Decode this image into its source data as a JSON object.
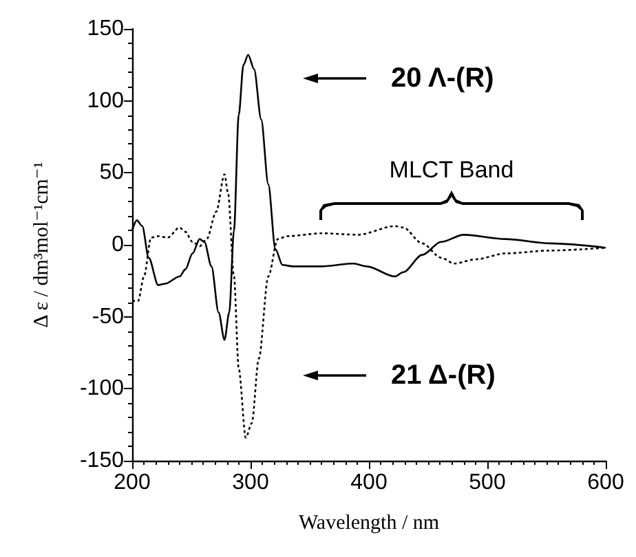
{
  "chart_data": {
    "type": "line",
    "xlabel": "Wavelength / nm",
    "ylabel": "Δ ε / dm³mol⁻¹cm⁻¹",
    "xlim": [
      200,
      600
    ],
    "xticks": [
      200,
      300,
      400,
      500,
      600
    ],
    "ylim": [
      -150,
      150
    ],
    "yticks": [
      -150,
      -100,
      -50,
      0,
      50,
      100,
      150
    ],
    "grid": false,
    "marker": "none",
    "annotations": [
      "20 Λ-(R)",
      "21 Δ-(R)",
      "MLCT Band"
    ],
    "series": [
      {
        "color": "#000000",
        "line_style": "solid",
        "x": [
          200,
          204,
          208.5,
          214,
          222,
          228,
          240,
          245,
          251,
          257,
          261,
          267,
          273,
          278,
          282,
          286,
          290,
          294,
          298,
          303,
          309,
          315,
          321,
          327,
          336,
          360,
          387,
          398,
          422,
          429,
          445,
          461,
          480,
          515,
          553,
          600
        ],
        "values": [
          10,
          17,
          13,
          -9,
          -28,
          -27,
          -22,
          -17,
          -6,
          4,
          2,
          -15,
          -47,
          -66,
          -47,
          10,
          90,
          125,
          132,
          122,
          87,
          42,
          -3,
          -14,
          -15,
          -15,
          -13,
          -15,
          -22,
          -19,
          -7,
          2,
          7,
          4,
          1,
          -2
        ]
      },
      {
        "color": "#000000",
        "line_style": "dotted",
        "x": [
          200,
          205,
          210,
          216,
          222,
          230,
          240,
          245,
          251,
          257,
          263,
          271,
          278,
          281,
          286,
          290,
          296,
          301,
          307,
          315,
          323,
          331,
          360,
          391,
          422,
          429,
          445,
          461,
          472,
          491,
          515,
          553,
          600
        ],
        "values": [
          -39,
          -39,
          -22,
          5,
          6,
          5,
          12,
          9,
          2,
          -1,
          4,
          23,
          49,
          36,
          -22,
          -86,
          -134,
          -124,
          -79,
          -22,
          4,
          6,
          8,
          7,
          13,
          12,
          1,
          -9,
          -13,
          -10,
          -6,
          -4,
          -2
        ]
      }
    ]
  }
}
